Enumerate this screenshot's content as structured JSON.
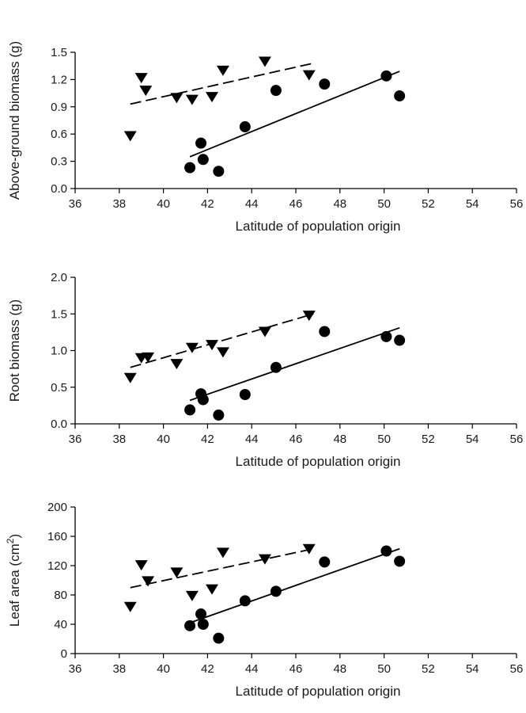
{
  "chart_data": [
    {
      "type": "scatter",
      "title": "",
      "xlabel": "Latitude of population origin",
      "ylabel": "Above-ground biomass (g)",
      "ylabel_superscript": "",
      "ylabel_suffix": "",
      "xlim": [
        36,
        56
      ],
      "ylim": [
        0,
        1.5
      ],
      "xticks": [
        36,
        38,
        40,
        42,
        44,
        46,
        48,
        50,
        52,
        54,
        56
      ],
      "yticks": [
        0.0,
        0.3,
        0.6,
        0.9,
        1.2,
        1.5
      ],
      "ytick_labels": [
        "0.0",
        "0.3",
        "0.6",
        "0.9",
        "1.2",
        "1.5"
      ],
      "grid": false,
      "legend": "none",
      "series": [
        {
          "marker": "triangle-down",
          "fit_line": "dashed",
          "points": [
            {
              "x": 38.5,
              "y": 0.58
            },
            {
              "x": 39.0,
              "y": 1.22
            },
            {
              "x": 39.2,
              "y": 1.08
            },
            {
              "x": 40.6,
              "y": 1.0
            },
            {
              "x": 41.3,
              "y": 0.98
            },
            {
              "x": 42.2,
              "y": 1.01
            },
            {
              "x": 42.7,
              "y": 1.3
            },
            {
              "x": 44.6,
              "y": 1.4
            },
            {
              "x": 46.6,
              "y": 1.25
            }
          ],
          "fit": {
            "x0": 38.5,
            "y0": 0.93,
            "x1": 46.8,
            "y1": 1.38
          }
        },
        {
          "marker": "circle",
          "fit_line": "solid",
          "points": [
            {
              "x": 41.2,
              "y": 0.23
            },
            {
              "x": 41.7,
              "y": 0.5
            },
            {
              "x": 41.8,
              "y": 0.32
            },
            {
              "x": 42.5,
              "y": 0.19
            },
            {
              "x": 43.7,
              "y": 0.68
            },
            {
              "x": 45.1,
              "y": 1.08
            },
            {
              "x": 47.3,
              "y": 1.15
            },
            {
              "x": 50.1,
              "y": 1.24
            },
            {
              "x": 50.7,
              "y": 1.02
            }
          ],
          "fit": {
            "x0": 41.2,
            "y0": 0.35,
            "x1": 50.7,
            "y1": 1.29
          }
        }
      ]
    },
    {
      "type": "scatter",
      "title": "",
      "xlabel": "Latitude of population origin",
      "ylabel": "Root biomass (g)",
      "ylabel_superscript": "",
      "ylabel_suffix": "",
      "xlim": [
        36,
        56
      ],
      "ylim": [
        0,
        2.0
      ],
      "xticks": [
        36,
        38,
        40,
        42,
        44,
        46,
        48,
        50,
        52,
        54,
        56
      ],
      "yticks": [
        0.0,
        0.5,
        1.0,
        1.5,
        2.0
      ],
      "ytick_labels": [
        "0.0",
        "0.5",
        "1.0",
        "1.5",
        "2.0"
      ],
      "grid": false,
      "legend": "none",
      "series": [
        {
          "marker": "triangle-down",
          "fit_line": "dashed",
          "points": [
            {
              "x": 38.5,
              "y": 0.63
            },
            {
              "x": 39.0,
              "y": 0.9
            },
            {
              "x": 39.3,
              "y": 0.91
            },
            {
              "x": 40.6,
              "y": 0.82
            },
            {
              "x": 41.3,
              "y": 1.04
            },
            {
              "x": 42.2,
              "y": 1.08
            },
            {
              "x": 42.7,
              "y": 0.98
            },
            {
              "x": 44.6,
              "y": 1.26
            },
            {
              "x": 46.6,
              "y": 1.48
            }
          ],
          "fit": {
            "x0": 38.5,
            "y0": 0.77,
            "x1": 46.8,
            "y1": 1.5
          }
        },
        {
          "marker": "circle",
          "fit_line": "solid",
          "points": [
            {
              "x": 41.2,
              "y": 0.19
            },
            {
              "x": 41.7,
              "y": 0.41
            },
            {
              "x": 41.8,
              "y": 0.33
            },
            {
              "x": 42.5,
              "y": 0.12
            },
            {
              "x": 43.7,
              "y": 0.4
            },
            {
              "x": 45.1,
              "y": 0.77
            },
            {
              "x": 47.3,
              "y": 1.26
            },
            {
              "x": 50.1,
              "y": 1.19
            },
            {
              "x": 50.7,
              "y": 1.14
            }
          ],
          "fit": {
            "x0": 41.2,
            "y0": 0.32,
            "x1": 50.7,
            "y1": 1.31
          }
        }
      ]
    },
    {
      "type": "scatter",
      "title": "",
      "xlabel": "Latitude of population origin",
      "ylabel": "Leaf area (cm",
      "ylabel_superscript": "2",
      "ylabel_suffix": ")",
      "xlim": [
        36,
        56
      ],
      "ylim": [
        0,
        200
      ],
      "xticks": [
        36,
        38,
        40,
        42,
        44,
        46,
        48,
        50,
        52,
        54,
        56
      ],
      "yticks": [
        0,
        40,
        80,
        120,
        160,
        200
      ],
      "ytick_labels": [
        "0",
        "40",
        "80",
        "120",
        "160",
        "200"
      ],
      "grid": false,
      "legend": "none",
      "series": [
        {
          "marker": "triangle-down",
          "fit_line": "dashed",
          "points": [
            {
              "x": 38.5,
              "y": 64
            },
            {
              "x": 39.0,
              "y": 121
            },
            {
              "x": 39.3,
              "y": 99
            },
            {
              "x": 40.6,
              "y": 111
            },
            {
              "x": 41.3,
              "y": 79
            },
            {
              "x": 42.2,
              "y": 88
            },
            {
              "x": 42.7,
              "y": 138
            },
            {
              "x": 44.6,
              "y": 129
            },
            {
              "x": 46.6,
              "y": 143
            }
          ],
          "fit": {
            "x0": 38.5,
            "y0": 90,
            "x1": 46.8,
            "y1": 143
          }
        },
        {
          "marker": "circle",
          "fit_line": "solid",
          "points": [
            {
              "x": 41.2,
              "y": 38
            },
            {
              "x": 41.7,
              "y": 54
            },
            {
              "x": 41.8,
              "y": 40
            },
            {
              "x": 42.5,
              "y": 21
            },
            {
              "x": 43.7,
              "y": 72
            },
            {
              "x": 45.1,
              "y": 85
            },
            {
              "x": 47.3,
              "y": 125
            },
            {
              "x": 50.1,
              "y": 140
            },
            {
              "x": 50.7,
              "y": 126
            }
          ],
          "fit": {
            "x0": 41.2,
            "y0": 42,
            "x1": 50.7,
            "y1": 143
          }
        }
      ]
    }
  ]
}
